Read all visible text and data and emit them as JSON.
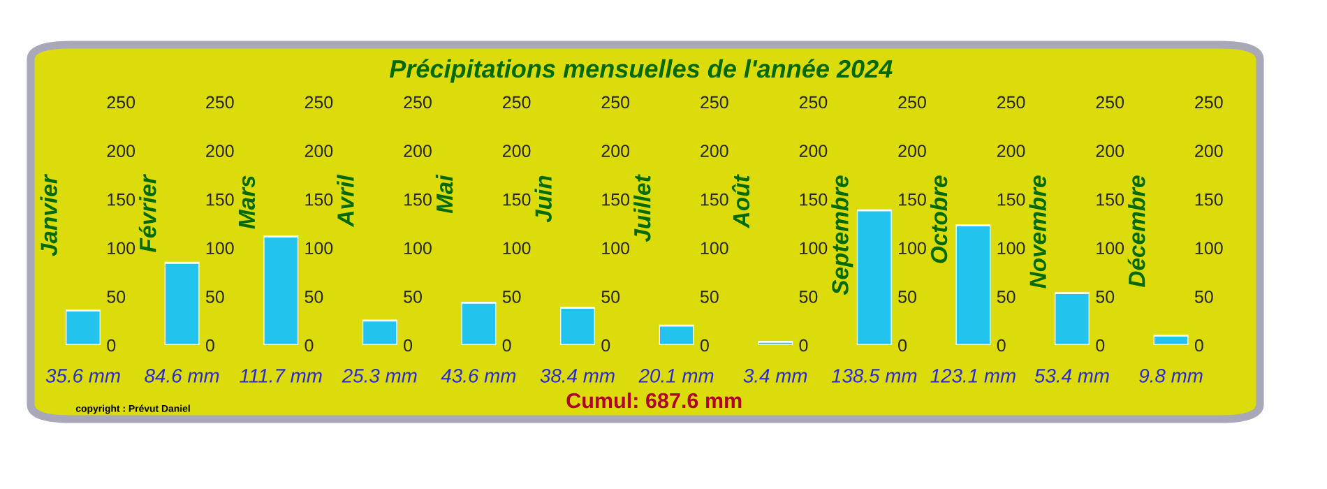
{
  "chart_data": [
    {
      "type": "bar",
      "annotations": [
        "Cumul: 687.6 mm",
        "copyright : Prévut Daniel"
      ],
      "categories": [
        "Janvier"
      ],
      "values": [
        35.6
      ],
      "value_labels": [
        "35.6 mm"
      ],
      "color": "#22c4ee",
      "ylim": [
        0,
        250
      ],
      "yticks": [
        0,
        50,
        100,
        150,
        200,
        250
      ]
    },
    {
      "type": "bar",
      "categories": [
        "Février"
      ],
      "values": [
        84.6
      ],
      "value_labels": [
        "84.6 mm"
      ],
      "color": "#22c4ee",
      "ylim": [
        0,
        250
      ],
      "yticks": [
        0,
        50,
        100,
        150,
        200,
        250
      ]
    },
    {
      "type": "bar",
      "categories": [
        "Mars"
      ],
      "values": [
        111.7
      ],
      "value_labels": [
        "111.7 mm"
      ],
      "color": "#22c4ee",
      "ylim": [
        0,
        250
      ],
      "yticks": [
        0,
        50,
        100,
        150,
        200,
        250
      ]
    },
    {
      "type": "bar",
      "categories": [
        "Avril"
      ],
      "values": [
        25.3
      ],
      "value_labels": [
        "25.3 mm"
      ],
      "color": "#22c4ee",
      "ylim": [
        0,
        250
      ],
      "yticks": [
        0,
        50,
        100,
        150,
        200,
        250
      ]
    },
    {
      "type": "bar",
      "categories": [
        "Mai"
      ],
      "values": [
        43.6
      ],
      "value_labels": [
        "43.6 mm"
      ],
      "color": "#22c4ee",
      "ylim": [
        0,
        250
      ],
      "yticks": [
        0,
        50,
        100,
        150,
        200,
        250
      ]
    },
    {
      "type": "bar",
      "categories": [
        "Juin"
      ],
      "values": [
        38.4
      ],
      "value_labels": [
        "38.4 mm"
      ],
      "color": "#22c4ee",
      "ylim": [
        0,
        250
      ],
      "yticks": [
        0,
        50,
        100,
        150,
        200,
        250
      ]
    },
    {
      "type": "bar",
      "title": "Précipitations mensuelles de l'année 2024",
      "categories": [
        "Juillet"
      ],
      "values": [
        20.1
      ],
      "value_labels": [
        "20.1 mm"
      ],
      "color": "#22c4ee",
      "ylim": [
        0,
        250
      ],
      "yticks": [
        0,
        50,
        100,
        150,
        200,
        250
      ]
    },
    {
      "type": "bar",
      "categories": [
        "Août"
      ],
      "values": [
        3.4
      ],
      "value_labels": [
        "3.4 mm"
      ],
      "color": "#22c4ee",
      "ylim": [
        0,
        250
      ],
      "yticks": [
        0,
        50,
        100,
        150,
        200,
        250
      ]
    },
    {
      "type": "bar",
      "categories": [
        "Septembre"
      ],
      "values": [
        138.5
      ],
      "value_labels": [
        "138.5 mm"
      ],
      "color": "#22c4ee",
      "ylim": [
        0,
        250
      ],
      "yticks": [
        0,
        50,
        100,
        150,
        200,
        250
      ]
    },
    {
      "type": "bar",
      "categories": [
        "Octobre"
      ],
      "values": [
        123.1
      ],
      "value_labels": [
        "123.1 mm"
      ],
      "color": "#22c4ee",
      "ylim": [
        0,
        250
      ],
      "yticks": [
        0,
        50,
        100,
        150,
        200,
        250
      ]
    },
    {
      "type": "bar",
      "categories": [
        "Novembre"
      ],
      "values": [
        53.4
      ],
      "value_labels": [
        "53.4 mm"
      ],
      "color": "#22c4ee",
      "ylim": [
        0,
        250
      ],
      "yticks": [
        0,
        50,
        100,
        150,
        200,
        250
      ]
    },
    {
      "type": "bar",
      "categories": [
        "Décembre"
      ],
      "values": [
        9.8
      ],
      "value_labels": [
        "9.8 mm"
      ],
      "color": "#22c4ee",
      "ylim": [
        0,
        250
      ],
      "yticks": [
        0,
        50,
        100,
        150,
        200,
        250
      ]
    }
  ]
}
